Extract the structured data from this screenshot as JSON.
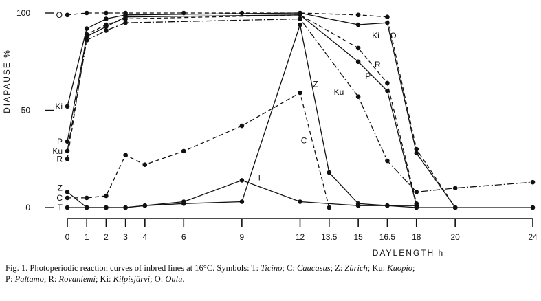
{
  "chart_data": {
    "type": "line",
    "xlabel": "DAYLENGTH  h",
    "ylabel": "DIAPAUSE  %",
    "xlim": [
      0,
      24
    ],
    "ylim": [
      0,
      100
    ],
    "x_ticks": [
      "0",
      "1",
      "2",
      "3",
      "4",
      "6",
      "9",
      "12",
      "13.5",
      "15",
      "16.5",
      "18",
      "20",
      "24"
    ],
    "y_ticks": [
      "0",
      "50",
      "100"
    ],
    "grid": false,
    "series": [
      {
        "name": "O",
        "dash": "6,4",
        "x": [
          0,
          1,
          2,
          3,
          6,
          9,
          12,
          15,
          16.5,
          18,
          20
        ],
        "y": [
          99,
          100,
          100,
          100,
          100,
          100,
          100,
          99,
          98,
          30,
          0
        ]
      },
      {
        "name": "Ki",
        "dash": "",
        "x": [
          0,
          1,
          2,
          3,
          12,
          15,
          16.5,
          18,
          20
        ],
        "y": [
          52,
          92,
          97,
          99,
          100,
          94,
          95,
          28,
          0
        ]
      },
      {
        "name": "R",
        "dash": "6,4",
        "x": [
          0,
          1,
          2,
          3,
          12,
          15,
          16.5,
          18
        ],
        "y": [
          25,
          89,
          94,
          97,
          99,
          82,
          64,
          2
        ]
      },
      {
        "name": "P",
        "dash": "",
        "x": [
          0,
          1,
          2,
          3,
          12,
          15,
          16.5,
          18
        ],
        "y": [
          34,
          88,
          93,
          98,
          99,
          75,
          60,
          1
        ]
      },
      {
        "name": "Ku",
        "dash": "10,3,2,3",
        "x": [
          0,
          1,
          2,
          3,
          12,
          15,
          16.5,
          18,
          20,
          24
        ],
        "y": [
          29,
          86,
          91,
          95,
          97,
          57,
          24,
          8,
          10,
          13
        ]
      },
      {
        "name": "Z",
        "dash": "",
        "x": [
          0,
          1,
          2,
          3,
          4,
          6,
          9,
          12,
          13.5,
          15,
          16.5,
          18
        ],
        "y": [
          8,
          0,
          0,
          0,
          1,
          2,
          3,
          94,
          18,
          2,
          1,
          1
        ]
      },
      {
        "name": "C",
        "dash": "6,4",
        "x": [
          0,
          1,
          2,
          3,
          4,
          6,
          9,
          12,
          13.5
        ],
        "y": [
          5,
          5,
          6,
          27,
          22,
          29,
          42,
          59,
          0
        ]
      },
      {
        "name": "T",
        "dash": "",
        "x": [
          0,
          1,
          2,
          3,
          4,
          6,
          9,
          12,
          15,
          16.5,
          18,
          20,
          24
        ],
        "y": [
          0,
          0,
          0,
          0,
          1,
          3,
          14,
          3,
          1,
          1,
          0,
          0,
          0
        ]
      }
    ],
    "left_labels": [
      {
        "text": "Ki",
        "y": 52
      },
      {
        "text": "P",
        "y": 34
      },
      {
        "text": "Ku",
        "y": 29
      },
      {
        "text": "R",
        "y": 25
      },
      {
        "text": "Z",
        "y": 10
      },
      {
        "text": "C",
        "y": 5
      },
      {
        "text": "T",
        "y": 0
      },
      {
        "text": "O",
        "y": 99
      }
    ],
    "curve_labels": [
      {
        "text": "T",
        "x": 9.9,
        "y": 14
      },
      {
        "text": "C",
        "x": 12.2,
        "y": 33
      },
      {
        "text": "Z",
        "x": 12.8,
        "y": 62
      },
      {
        "text": "Ku",
        "x": 14.0,
        "y": 58
      },
      {
        "text": "P",
        "x": 15.5,
        "y": 66
      },
      {
        "text": "R",
        "x": 16.0,
        "y": 72
      },
      {
        "text": "Ki",
        "x": 15.9,
        "y": 87
      },
      {
        "text": "O",
        "x": 16.8,
        "y": 87
      }
    ]
  },
  "caption": {
    "p1": "Fig. 1. Photoperiodic reaction curves of inbred lines at 16°C. Symbols: T: ",
    "ticino": "Ticino",
    "p2": "; C: ",
    "caucasus": "Caucasus",
    "p3": "; Z: ",
    "zurich": "Zürich",
    "p4": "; Ku: ",
    "kuopio": "Kuopio",
    "p5": ";",
    "p6": "P: ",
    "paltamo": "Paltamo",
    "p7": "; R: ",
    "rovaniemi": "Rovaniemi",
    "p8": "; Ki: ",
    "kilpisjarvi": "Kilpisjärvi",
    "p9": "; O: ",
    "oulu": "Oulu",
    "p10": "."
  }
}
